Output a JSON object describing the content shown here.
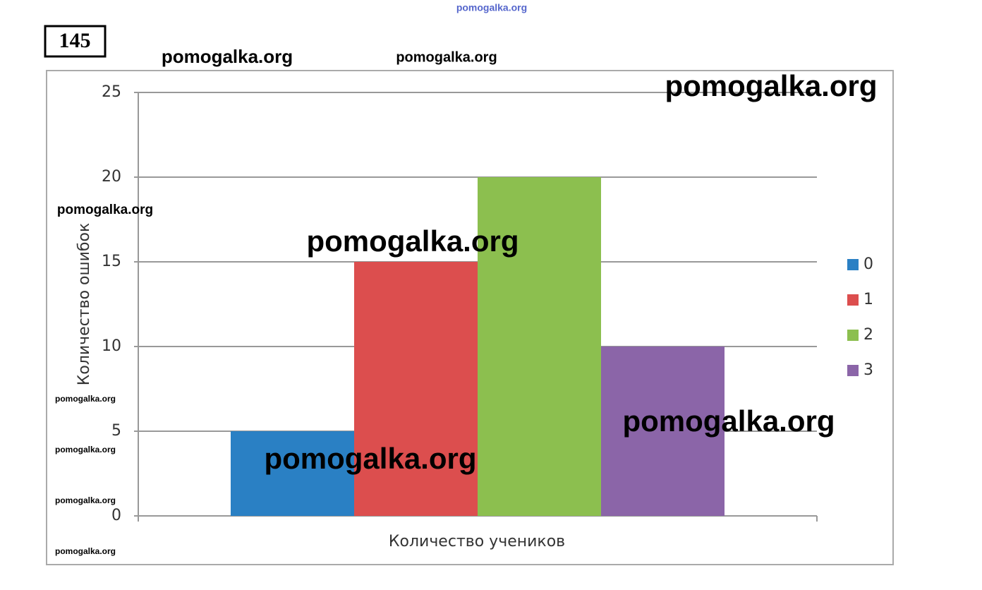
{
  "problem_number": "145",
  "watermarks": [
    "pomogalka.org",
    "pomogalka.org",
    "pomogalka.org",
    "pomogalka.org",
    "pomogalka.org",
    "pomogalka.org",
    "pomogalka.org",
    "pomogalka.org",
    "pomogalka.org",
    "pomogalka.org",
    "pomogalka.org",
    "pomogalka.org"
  ],
  "chart_data": {
    "type": "bar",
    "x_label": "Количество учеников",
    "y_label": "Количество ошибок",
    "categories": [
      null
    ],
    "series": [
      {
        "name": "0",
        "color": "#2a80c4",
        "values": [
          5
        ]
      },
      {
        "name": "1",
        "color": "#dc4e4e",
        "values": [
          15
        ]
      },
      {
        "name": "2",
        "color": "#8cbf4f",
        "values": [
          20
        ]
      },
      {
        "name": "3",
        "color": "#8b65a8",
        "values": [
          10
        ]
      }
    ],
    "ylim": [
      0,
      25
    ],
    "yticks": [
      0,
      5,
      10,
      15,
      20,
      25
    ],
    "grid": true,
    "legend": "right"
  }
}
